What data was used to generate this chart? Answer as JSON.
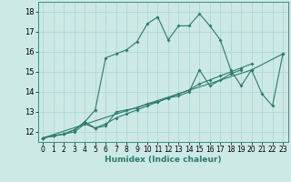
{
  "xlabel": "Humidex (Indice chaleur)",
  "bg_color": "#cce9e5",
  "grid_color": "#aad4cf",
  "line_color": "#2d7a6e",
  "xlim": [
    -0.5,
    23.5
  ],
  "ylim": [
    11.5,
    18.5
  ],
  "xticks": [
    0,
    1,
    2,
    3,
    4,
    5,
    6,
    7,
    8,
    9,
    10,
    11,
    12,
    13,
    14,
    15,
    16,
    17,
    18,
    19,
    20,
    21,
    22,
    23
  ],
  "yticks": [
    12,
    13,
    14,
    15,
    16,
    17,
    18
  ],
  "line1_x": [
    0,
    1,
    2,
    3,
    4,
    5,
    6,
    7,
    8,
    9,
    10,
    11,
    12,
    13,
    14,
    15,
    16,
    17,
    18,
    19,
    20,
    21,
    22,
    23
  ],
  "line1_y": [
    11.7,
    11.8,
    11.9,
    12.1,
    12.5,
    13.1,
    15.7,
    15.9,
    16.1,
    16.5,
    17.4,
    17.75,
    16.6,
    17.3,
    17.3,
    17.9,
    17.3,
    16.6,
    15.1,
    14.3,
    15.1,
    13.9,
    13.3,
    15.9
  ],
  "line2_x": [
    0,
    1,
    2,
    3,
    4,
    5,
    6,
    7,
    8,
    9,
    10,
    11,
    12,
    13,
    14,
    15,
    16,
    17,
    18,
    19
  ],
  "line2_y": [
    11.7,
    11.8,
    11.9,
    12.0,
    12.4,
    12.2,
    12.3,
    13.0,
    13.1,
    13.2,
    13.4,
    13.5,
    13.7,
    13.8,
    14.0,
    15.1,
    14.3,
    14.6,
    14.9,
    15.1
  ],
  "line3_x": [
    0,
    1,
    2,
    3,
    4,
    5,
    6,
    7,
    8,
    9,
    10,
    11,
    12,
    13,
    14,
    15,
    16,
    17,
    18,
    19,
    20
  ],
  "line3_y": [
    11.7,
    11.8,
    11.9,
    12.1,
    12.5,
    12.2,
    12.4,
    12.7,
    12.9,
    13.1,
    13.3,
    13.5,
    13.7,
    13.9,
    14.1,
    14.4,
    14.6,
    14.8,
    15.0,
    15.2,
    15.4
  ],
  "line4_x": [
    0,
    20,
    23
  ],
  "line4_y": [
    11.7,
    15.1,
    15.9
  ]
}
